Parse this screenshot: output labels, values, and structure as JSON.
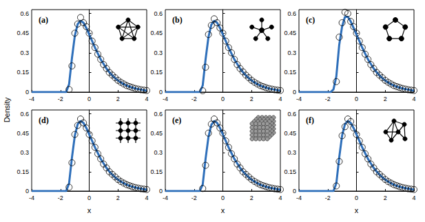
{
  "chart_data": {
    "type": "panels",
    "ylabel": "Density",
    "panels": [
      {
        "type": "line",
        "title": "(a)",
        "xlim": [
          -4,
          4
        ],
        "xticks": [
          -4,
          -2,
          0,
          2,
          4
        ],
        "ylim": [
          0,
          0.63
        ],
        "yticks": [
          0,
          0.15,
          0.3,
          0.45,
          0.6
        ],
        "series": [
          {
            "type": "line",
            "color": "#2e6fba",
            "line_style": "solid",
            "x": [
              -4,
              -2,
              -1.6,
              -1.4,
              -1.2,
              -1.0,
              -0.8,
              -0.6,
              -0.4,
              -0.2,
              0,
              0.2,
              0.4,
              0.6,
              0.8,
              1.0,
              1.2,
              1.4,
              1.6,
              1.8,
              2.0,
              2.2,
              2.4,
              2.6,
              2.8,
              3.0,
              3.2,
              3.4,
              3.6,
              3.8,
              4.0
            ],
            "values": [
              0,
              0,
              0,
              0.06,
              0.26,
              0.43,
              0.52,
              0.545,
              0.53,
              0.49,
              0.44,
              0.39,
              0.34,
              0.295,
              0.25,
              0.215,
              0.18,
              0.152,
              0.128,
              0.107,
              0.089,
              0.074,
              0.061,
              0.05,
              0.041,
              0.034,
              0.028,
              0.023,
              0.019,
              0.015,
              0.012
            ]
          },
          {
            "type": "scatter",
            "color": "#000000",
            "marker": "circle-open",
            "x": [
              -1.4,
              -1.2,
              -1.0,
              -0.8,
              -0.6,
              -0.4,
              -0.2,
              0,
              0.2,
              0.4,
              0.6,
              0.8,
              1.0,
              1.2,
              1.4,
              1.6,
              1.8,
              2.0,
              2.2,
              2.4,
              2.6,
              2.8,
              3.0,
              3.2,
              3.4,
              3.6,
              3.8,
              4.0
            ],
            "values": [
              0.02,
              0.2,
              0.45,
              0.52,
              0.57,
              0.53,
              0.5,
              0.45,
              0.39,
              0.34,
              0.29,
              0.25,
              0.21,
              0.18,
              0.15,
              0.13,
              0.11,
              0.09,
              0.075,
              0.062,
              0.05,
              0.042,
              0.035,
              0.028,
              0.023,
              0.018,
              0.015,
              0.012
            ]
          }
        ]
      },
      {
        "type": "line",
        "title": "(b)",
        "xlim": [
          -4,
          4
        ],
        "xticks": [
          -4,
          -2,
          0,
          2,
          4
        ],
        "ylim": [
          0,
          0.63
        ],
        "yticks": [
          0,
          0.15,
          0.3,
          0.45,
          0.6
        ],
        "series": [
          {
            "type": "line",
            "color": "#2e6fba",
            "line_style": "solid",
            "x": [
              -4,
              -2,
              -1.6,
              -1.4,
              -1.2,
              -1.0,
              -0.8,
              -0.6,
              -0.4,
              -0.2,
              0,
              0.2,
              0.4,
              0.6,
              0.8,
              1.0,
              1.2,
              1.4,
              1.6,
              1.8,
              2.0,
              2.2,
              2.4,
              2.6,
              2.8,
              3.0,
              3.2,
              3.4,
              3.6,
              3.8,
              4.0
            ],
            "values": [
              0,
              0,
              0,
              0.05,
              0.25,
              0.42,
              0.515,
              0.545,
              0.53,
              0.49,
              0.44,
              0.39,
              0.34,
              0.295,
              0.25,
              0.215,
              0.18,
              0.152,
              0.128,
              0.107,
              0.089,
              0.074,
              0.061,
              0.05,
              0.041,
              0.034,
              0.028,
              0.023,
              0.019,
              0.015,
              0.012
            ]
          },
          {
            "type": "scatter",
            "color": "#000000",
            "marker": "circle-open",
            "x": [
              -1.4,
              -1.2,
              -1.0,
              -0.8,
              -0.6,
              -0.4,
              -0.2,
              0,
              0.2,
              0.4,
              0.6,
              0.8,
              1.0,
              1.2,
              1.4,
              1.6,
              1.8,
              2.0,
              2.2,
              2.4,
              2.6,
              2.8,
              3.0,
              3.2,
              3.4,
              3.6,
              3.8,
              4.0
            ],
            "values": [
              0.01,
              0.19,
              0.44,
              0.51,
              0.56,
              0.53,
              0.49,
              0.45,
              0.39,
              0.34,
              0.3,
              0.25,
              0.21,
              0.18,
              0.155,
              0.13,
              0.11,
              0.09,
              0.075,
              0.062,
              0.05,
              0.042,
              0.034,
              0.028,
              0.023,
              0.018,
              0.015,
              0.012
            ]
          }
        ]
      },
      {
        "type": "line",
        "title": "(c)",
        "xlim": [
          -4,
          4
        ],
        "xticks": [
          -4,
          -2,
          0,
          2,
          4
        ],
        "ylim": [
          0,
          0.63
        ],
        "yticks": [
          0,
          0.15,
          0.3,
          0.45,
          0.6
        ],
        "series": [
          {
            "type": "line",
            "color": "#2e6fba",
            "line_style": "solid",
            "x": [
              -4,
              -2,
              -1.8,
              -1.6,
              -1.4,
              -1.2,
              -1.0,
              -0.8,
              -0.6,
              -0.4,
              -0.2,
              0,
              0.2,
              0.4,
              0.6,
              0.8,
              1.0,
              1.2,
              1.4,
              1.6,
              1.8,
              2.0,
              2.2,
              2.4,
              2.6,
              2.8,
              3.0,
              3.2,
              3.4,
              3.6,
              3.8,
              4.0
            ],
            "values": [
              0,
              0,
              0,
              0.02,
              0.12,
              0.36,
              0.5,
              0.575,
              0.575,
              0.54,
              0.49,
              0.44,
              0.39,
              0.34,
              0.295,
              0.25,
              0.215,
              0.18,
              0.152,
              0.128,
              0.107,
              0.089,
              0.074,
              0.061,
              0.05,
              0.041,
              0.034,
              0.028,
              0.023,
              0.019,
              0.015,
              0.012
            ]
          },
          {
            "type": "scatter",
            "color": "#000000",
            "marker": "circle-open",
            "x": [
              -1.4,
              -1.2,
              -1.0,
              -0.8,
              -0.6,
              -0.4,
              -0.2,
              0,
              0.2,
              0.4,
              0.6,
              0.8,
              1.0,
              1.2,
              1.4,
              1.6,
              1.8,
              2.0,
              2.2,
              2.4,
              2.6,
              2.8,
              3.0,
              3.2,
              3.4,
              3.6,
              3.8,
              4.0
            ],
            "values": [
              0.08,
              0.42,
              0.53,
              0.61,
              0.6,
              0.54,
              0.5,
              0.45,
              0.39,
              0.34,
              0.29,
              0.25,
              0.21,
              0.18,
              0.15,
              0.13,
              0.11,
              0.09,
              0.075,
              0.062,
              0.05,
              0.042,
              0.035,
              0.028,
              0.023,
              0.018,
              0.015,
              0.012
            ]
          }
        ]
      },
      {
        "type": "line",
        "title": "(d)",
        "xlabel": "x",
        "xlim": [
          -4,
          4
        ],
        "xticks": [
          -4,
          -2,
          0,
          2,
          4
        ],
        "ylim": [
          0,
          0.63
        ],
        "yticks": [
          0,
          0.15,
          0.3,
          0.45,
          0.6
        ],
        "series": [
          {
            "type": "line",
            "color": "#2e6fba",
            "line_style": "solid",
            "x": [
              -4,
              -2,
              -1.6,
              -1.4,
              -1.2,
              -1.0,
              -0.8,
              -0.6,
              -0.4,
              -0.2,
              0,
              0.2,
              0.4,
              0.6,
              0.8,
              1.0,
              1.2,
              1.4,
              1.6,
              1.8,
              2.0,
              2.2,
              2.4,
              2.6,
              2.8,
              3.0,
              3.2,
              3.4,
              3.6,
              3.8,
              4.0
            ],
            "values": [
              0,
              0,
              0,
              0.06,
              0.26,
              0.43,
              0.52,
              0.545,
              0.53,
              0.49,
              0.44,
              0.39,
              0.34,
              0.295,
              0.25,
              0.215,
              0.18,
              0.152,
              0.128,
              0.107,
              0.089,
              0.074,
              0.061,
              0.05,
              0.041,
              0.034,
              0.028,
              0.023,
              0.019,
              0.015,
              0.012
            ]
          },
          {
            "type": "scatter",
            "color": "#000000",
            "marker": "circle-open",
            "x": [
              -1.4,
              -1.2,
              -1.0,
              -0.8,
              -0.6,
              -0.4,
              -0.2,
              0,
              0.2,
              0.4,
              0.6,
              0.8,
              1.0,
              1.2,
              1.4,
              1.6,
              1.8,
              2.0,
              2.2,
              2.4,
              2.6,
              2.8,
              3.0,
              3.2,
              3.4,
              3.6,
              3.8,
              4.0
            ],
            "values": [
              0.03,
              0.22,
              0.44,
              0.51,
              0.56,
              0.53,
              0.49,
              0.44,
              0.39,
              0.34,
              0.29,
              0.25,
              0.21,
              0.18,
              0.15,
              0.13,
              0.11,
              0.09,
              0.074,
              0.062,
              0.05,
              0.042,
              0.034,
              0.028,
              0.023,
              0.018,
              0.015,
              0.012
            ]
          }
        ]
      },
      {
        "type": "line",
        "title": "(e)",
        "xlabel": "x",
        "xlim": [
          -4,
          4
        ],
        "xticks": [
          -4,
          -2,
          0,
          2,
          4
        ],
        "ylim": [
          0,
          0.63
        ],
        "yticks": [
          0,
          0.15,
          0.3,
          0.45,
          0.6
        ],
        "series": [
          {
            "type": "line",
            "color": "#2e6fba",
            "line_style": "solid",
            "x": [
              -4,
              -2,
              -1.6,
              -1.4,
              -1.2,
              -1.0,
              -0.8,
              -0.6,
              -0.4,
              -0.2,
              0,
              0.2,
              0.4,
              0.6,
              0.8,
              1.0,
              1.2,
              1.4,
              1.6,
              1.8,
              2.0,
              2.2,
              2.4,
              2.6,
              2.8,
              3.0,
              3.2,
              3.4,
              3.6,
              3.8,
              4.0
            ],
            "values": [
              0,
              0,
              0,
              0.05,
              0.25,
              0.42,
              0.515,
              0.545,
              0.53,
              0.49,
              0.44,
              0.39,
              0.34,
              0.295,
              0.25,
              0.215,
              0.18,
              0.152,
              0.128,
              0.107,
              0.089,
              0.074,
              0.061,
              0.05,
              0.041,
              0.034,
              0.028,
              0.023,
              0.019,
              0.015,
              0.012
            ]
          },
          {
            "type": "scatter",
            "color": "#000000",
            "marker": "circle-open",
            "x": [
              -1.4,
              -1.2,
              -1.0,
              -0.8,
              -0.6,
              -0.4,
              -0.2,
              0,
              0.2,
              0.4,
              0.6,
              0.8,
              1.0,
              1.2,
              1.4,
              1.6,
              1.8,
              2.0,
              2.2,
              2.4,
              2.6,
              2.8,
              3.0,
              3.2,
              3.4,
              3.6,
              3.8,
              4.0
            ],
            "values": [
              0.02,
              0.2,
              0.45,
              0.52,
              0.56,
              0.53,
              0.49,
              0.45,
              0.39,
              0.34,
              0.29,
              0.25,
              0.21,
              0.18,
              0.15,
              0.13,
              0.11,
              0.09,
              0.075,
              0.062,
              0.05,
              0.042,
              0.035,
              0.028,
              0.023,
              0.018,
              0.015,
              0.012
            ]
          }
        ]
      },
      {
        "type": "line",
        "title": "(f)",
        "xlabel": "x",
        "xlim": [
          -4,
          4
        ],
        "xticks": [
          -4,
          -2,
          0,
          2,
          4
        ],
        "ylim": [
          0,
          0.63
        ],
        "yticks": [
          0,
          0.15,
          0.3,
          0.45,
          0.6
        ],
        "series": [
          {
            "type": "line",
            "color": "#2e6fba",
            "line_style": "solid",
            "x": [
              -4,
              -2,
              -1.6,
              -1.4,
              -1.2,
              -1.0,
              -0.8,
              -0.6,
              -0.4,
              -0.2,
              0,
              0.2,
              0.4,
              0.6,
              0.8,
              1.0,
              1.2,
              1.4,
              1.6,
              1.8,
              2.0,
              2.2,
              2.4,
              2.6,
              2.8,
              3.0,
              3.2,
              3.4,
              3.6,
              3.8,
              4.0
            ],
            "values": [
              0,
              0,
              0,
              0.06,
              0.26,
              0.43,
              0.52,
              0.545,
              0.53,
              0.49,
              0.44,
              0.39,
              0.34,
              0.295,
              0.25,
              0.215,
              0.18,
              0.152,
              0.128,
              0.107,
              0.089,
              0.074,
              0.061,
              0.05,
              0.041,
              0.034,
              0.028,
              0.023,
              0.019,
              0.015,
              0.012
            ]
          },
          {
            "type": "scatter",
            "color": "#000000",
            "marker": "circle-open",
            "x": [
              -1.4,
              -1.2,
              -1.0,
              -0.8,
              -0.6,
              -0.4,
              -0.2,
              0,
              0.2,
              0.4,
              0.6,
              0.8,
              1.0,
              1.2,
              1.4,
              1.6,
              1.8,
              2.0,
              2.2,
              2.4,
              2.6,
              2.8,
              3.0,
              3.2,
              3.4,
              3.6,
              3.8,
              4.0
            ],
            "values": [
              0.04,
              0.23,
              0.43,
              0.5,
              0.56,
              0.54,
              0.49,
              0.44,
              0.39,
              0.34,
              0.29,
              0.25,
              0.21,
              0.18,
              0.15,
              0.13,
              0.11,
              0.09,
              0.074,
              0.062,
              0.05,
              0.042,
              0.034,
              0.028,
              0.023,
              0.018,
              0.015,
              0.012
            ]
          }
        ]
      }
    ]
  }
}
